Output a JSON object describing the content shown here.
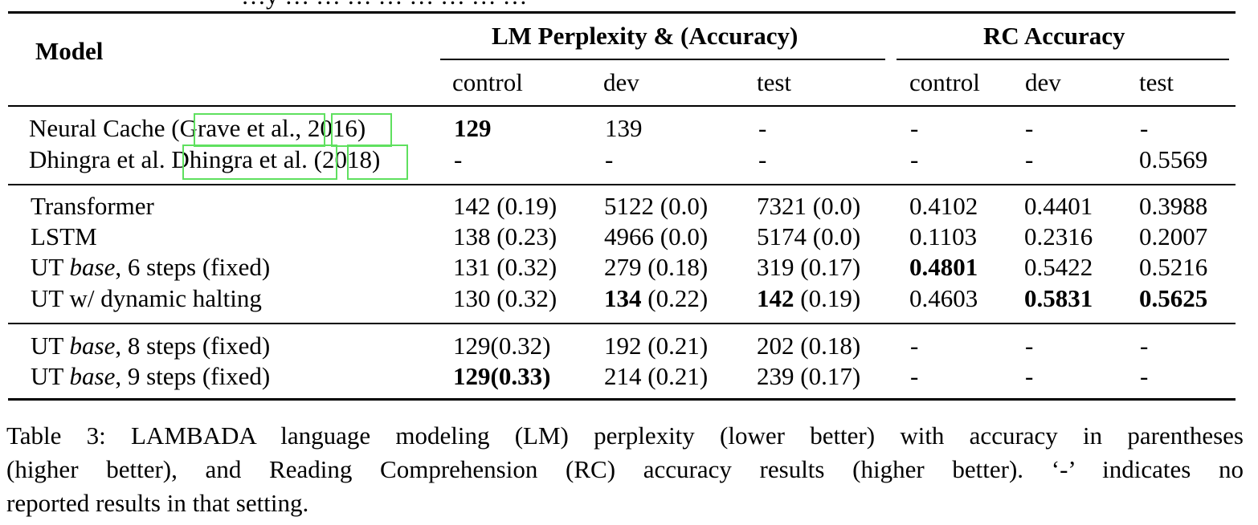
{
  "top_text": "…y … … … … … … … …",
  "header": {
    "model": "Model",
    "lm_group": "LM Perplexity & (Accuracy)",
    "rc_group": "RC Accuracy",
    "sub": [
      "control",
      "dev",
      "test",
      "control",
      "dev",
      "test"
    ]
  },
  "rows": {
    "neural_cache": {
      "model_prefix": "Neural Cache (",
      "cite_author": "Grave et al.",
      "cite_sep": ", ",
      "cite_year": "2016",
      "model_suffix": ")",
      "cells": [
        "129",
        "139",
        "-",
        "-",
        "-",
        "-"
      ]
    },
    "dhingra": {
      "model_prefix": "Dhingra et al. ",
      "cite_author": "Dhingra et al.",
      "cite_open": " (",
      "cite_year": "2018",
      "model_suffix": ")",
      "cells": [
        "-",
        "-",
        "-",
        "-",
        "-",
        "0.5569"
      ]
    },
    "transformer": {
      "model": "Transformer",
      "cells": [
        "142 (0.19)",
        "5122 (0.0)",
        "7321 (0.0)",
        "0.4102",
        "0.4401",
        "0.3988"
      ]
    },
    "lstm": {
      "model": "LSTM",
      "cells": [
        "138 (0.23)",
        "4966 (0.0)",
        "5174 (0.0)",
        "0.1103",
        "0.2316",
        "0.2007"
      ]
    },
    "ut6": {
      "model_a": "UT ",
      "model_it": "base",
      "model_b": ", 6 steps (fixed)",
      "cells": [
        "131 (0.32)",
        "279 (0.18)",
        "319 (0.17)",
        "0.4801",
        "0.5422",
        "0.5216"
      ]
    },
    "ut_dyn": {
      "model": "UT w/ dynamic halting",
      "c0": "130 (0.32)",
      "c1_bold": "134",
      "c1_rest": " (0.22)",
      "c2_bold": "142",
      "c2_rest": " (0.19)",
      "c3": "0.4603",
      "c4": "0.5831",
      "c5": "0.5625"
    },
    "ut8": {
      "model_a": "UT ",
      "model_it": "base",
      "model_b": ", 8 steps (fixed)",
      "cells": [
        "129(0.32)",
        "192 (0.21)",
        "202 (0.18)",
        "-",
        "-",
        "-"
      ]
    },
    "ut9": {
      "model_a": "UT ",
      "model_it": "base",
      "model_b": ", 9 steps (fixed)",
      "cells": [
        "129(0.33)",
        "214 (0.21)",
        "239 (0.17)",
        "-",
        "-",
        "-"
      ]
    }
  },
  "caption": {
    "line1": "Table 3: LAMBADA language modeling (LM) perplexity (lower better) with accuracy in parentheses",
    "line2": "(higher better), and Reading Comprehension (RC) accuracy results (higher better).  ‘-’ indicates no",
    "line3": "reported results in that setting."
  },
  "colors": {
    "citation_box": "#5fe05f",
    "text": "#000000"
  }
}
